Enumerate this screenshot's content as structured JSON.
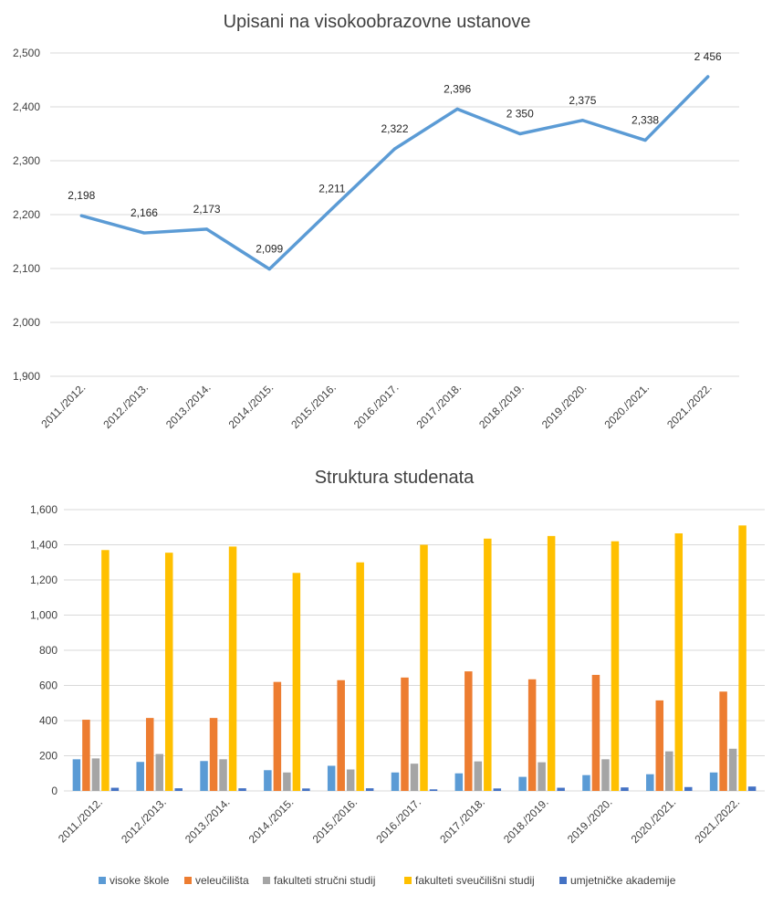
{
  "chart_data": [
    {
      "type": "line",
      "title": "Upisani na visokoobrazovne ustanove",
      "categories": [
        "2011./2012.",
        "2012./2013.",
        "2013./2014.",
        "2014./2015.",
        "2015./2016.",
        "2016./2017.",
        "2017./2018.",
        "2018./2019.",
        "2019./2020.",
        "2020./2021.",
        "2021./2022."
      ],
      "values": [
        2198,
        2166,
        2173,
        2099,
        2211,
        2322,
        2396,
        2350,
        2375,
        2338,
        2456
      ],
      "data_labels": [
        "2,198",
        "2,166",
        "2,173",
        "2,099",
        "2,211",
        "2,322",
        "2,396",
        "2 350",
        "2,375",
        "2,338",
        "2 456"
      ],
      "ylim": [
        1900,
        2500
      ],
      "yticks": [
        1900,
        2000,
        2100,
        2200,
        2300,
        2400,
        2500
      ],
      "ytick_labels": [
        "1,900",
        "2,000",
        "2,100",
        "2,200",
        "2,300",
        "2,400",
        "2,500"
      ],
      "grid": true,
      "color": "#5b9bd5"
    },
    {
      "type": "bar",
      "title": "Struktura studenata",
      "categories": [
        "2011./2012.",
        "2012./2013.",
        "2013./2014.",
        "2014./2015.",
        "2015./2016.",
        "2016./2017.",
        "2017./2018.",
        "2018./2019.",
        "2019./2020.",
        "2020./2021.",
        "2021./2022."
      ],
      "series": [
        {
          "name": "visoke škole",
          "color": "#5b9bd5",
          "values": [
            180,
            165,
            170,
            118,
            143,
            105,
            100,
            80,
            90,
            95,
            105
          ]
        },
        {
          "name": "veleučilišta",
          "color": "#ed7d31",
          "values": [
            405,
            415,
            415,
            620,
            630,
            645,
            680,
            635,
            660,
            515,
            565
          ]
        },
        {
          "name": "fakulteti stručni studij",
          "color": "#a5a5a5",
          "values": [
            185,
            210,
            180,
            105,
            122,
            155,
            168,
            163,
            180,
            225,
            240
          ]
        },
        {
          "name": "fakulteti sveučilišni studij",
          "color": "#ffc000",
          "values": [
            1370,
            1355,
            1390,
            1240,
            1300,
            1400,
            1435,
            1450,
            1420,
            1465,
            1510
          ]
        },
        {
          "name": "umjetničke akademije",
          "color": "#4472c4",
          "values": [
            18,
            15,
            15,
            14,
            15,
            9,
            14,
            18,
            20,
            22,
            25
          ]
        }
      ],
      "ylim": [
        0,
        1600
      ],
      "yticks": [
        0,
        200,
        400,
        600,
        800,
        1000,
        1200,
        1400,
        1600
      ],
      "ytick_labels": [
        "0",
        "200",
        "400",
        "600",
        "800",
        "1,000",
        "1,200",
        "1,400",
        "1,600"
      ],
      "grid": true,
      "legend": "bottom"
    }
  ]
}
